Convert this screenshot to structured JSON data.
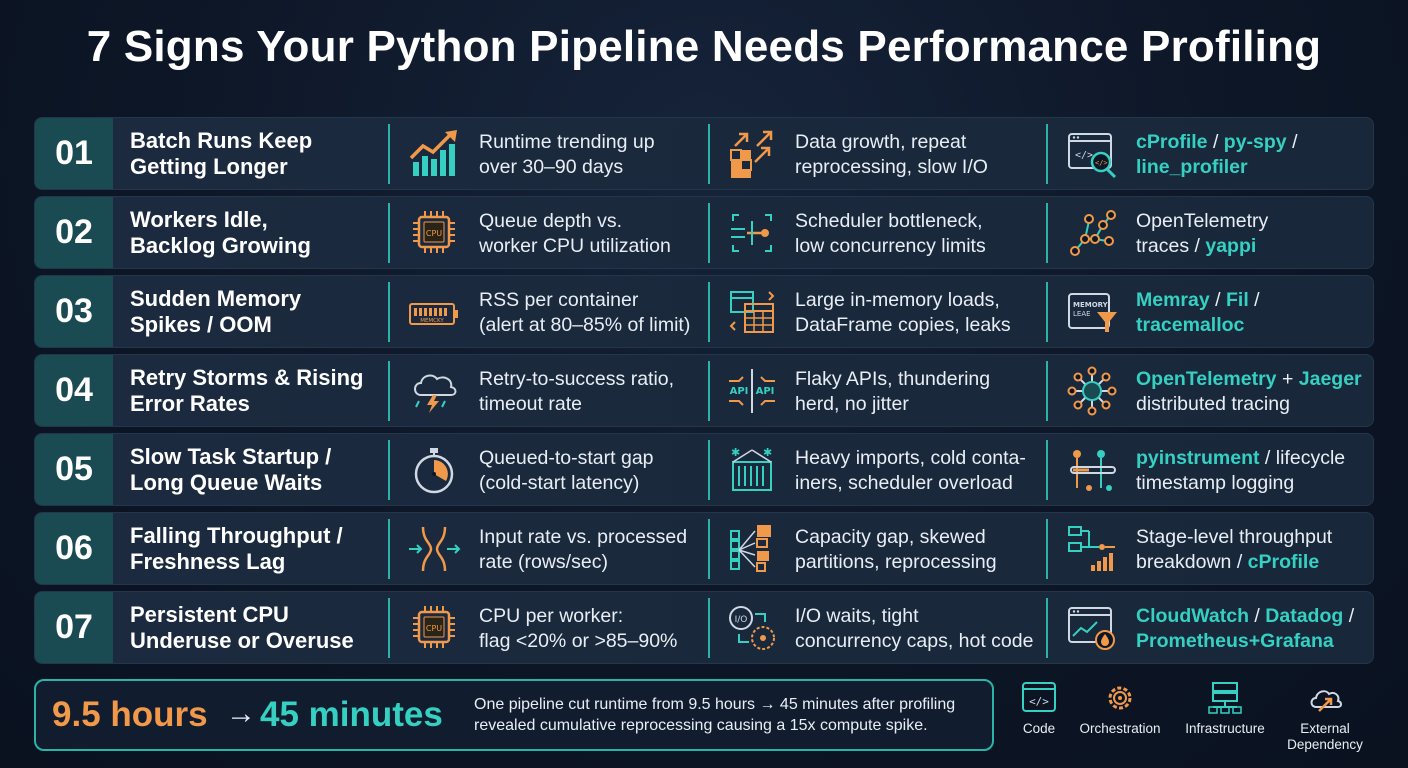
{
  "title": "7 Signs Your Python Pipeline Needs Performance Profiling",
  "colors": {
    "teal": "#35d0c2",
    "orange": "#f0994a",
    "background": "#0d1626",
    "row": "#1b2a3e",
    "number_box": "#1a4a52"
  },
  "rows": [
    {
      "num": "01",
      "sign_1": "Batch Runs Keep",
      "sign_2": "Getting Longer",
      "metric_icon": "trending-chart-icon",
      "metric_1": "Runtime trending up",
      "metric_2": "over 30–90 days",
      "cause_icon": "data-growth-icon",
      "cause_1": "Data growth, repeat",
      "cause_2": "reprocessing, slow I/O",
      "tool_icon": "code-search-icon",
      "tool_a": "cProfile",
      "tool_s1": " / ",
      "tool_b": "py-spy",
      "tool_s2": " /",
      "tool_c": "line_profiler"
    },
    {
      "num": "02",
      "sign_1": "Workers Idle,",
      "sign_2": "Backlog Growing",
      "metric_icon": "cpu-chip-icon",
      "metric_icon_label": "CPU",
      "metric_1": "Queue depth vs.",
      "metric_2": "worker CPU utilization",
      "cause_icon": "scheduler-bottleneck-icon",
      "cause_1": "Scheduler bottleneck,",
      "cause_2": "low concurrency limits",
      "tool_icon": "trace-graph-icon",
      "tool_1": "OpenTelemetry",
      "tool_2a": "traces / ",
      "tool_2b": "yappi"
    },
    {
      "num": "03",
      "sign_1": "Sudden Memory",
      "sign_2": "Spikes / OOM",
      "metric_icon": "memory-bar-icon",
      "metric_icon_label": "MEMCKY",
      "metric_1": "RSS per container",
      "metric_2": "(alert at 80–85% of limit)",
      "cause_icon": "dataframe-table-icon",
      "cause_1": "Large in-memory loads,",
      "cause_2": "DataFrame copies, leaks",
      "tool_icon": "memory-filter-icon",
      "tool_icon_label_1": "MEMORY",
      "tool_icon_label_2": "LEAE",
      "tool_a": "Memray",
      "tool_s1": " / ",
      "tool_b": "Fil",
      "tool_s2": " /",
      "tool_c": "tracemalloc"
    },
    {
      "num": "04",
      "sign_1": "Retry Storms & Rising",
      "sign_2": "Error Rates",
      "metric_icon": "storm-cloud-icon",
      "metric_1": "Retry-to-success ratio,",
      "metric_2": "timeout rate",
      "cause_icon": "api-conflict-icon",
      "cause_icon_label": "API",
      "cause_1": "Flaky APIs, thundering",
      "cause_2": "herd, no jitter",
      "tool_icon": "distributed-network-icon",
      "tool_a": "OpenTelemetry",
      "tool_s1": " + ",
      "tool_b": "Jaeger",
      "tool_2": "distributed tracing"
    },
    {
      "num": "05",
      "sign_1": "Slow Task Startup /",
      "sign_2": "Long Queue Waits",
      "metric_icon": "stopwatch-icon",
      "metric_1": "Queued-to-start gap",
      "metric_2": "(cold-start latency)",
      "cause_icon": "cold-container-icon",
      "cause_1": "Heavy imports, cold conta-",
      "cause_2": "iners, scheduler overload",
      "tool_icon": "lifecycle-timeline-icon",
      "tool_a": "pyinstrument",
      "tool_s1": " / lifecycle",
      "tool_2": "timestamp logging"
    },
    {
      "num": "06",
      "sign_1": "Falling Throughput /",
      "sign_2": "Freshness Lag",
      "metric_icon": "throughput-narrowing-icon",
      "metric_1": "Input rate vs. processed",
      "metric_2": "rate (rows/sec)",
      "cause_icon": "partition-skew-icon",
      "cause_1": "Capacity gap, skewed",
      "cause_2": "partitions, reprocessing",
      "tool_icon": "stage-breakdown-icon",
      "tool_1": "Stage-level throughput",
      "tool_2a": "breakdown / ",
      "tool_2b": "cProfile"
    },
    {
      "num": "07",
      "sign_1": "Persistent CPU",
      "sign_2": "Underuse or Overuse",
      "metric_icon": "cpu-chip-icon",
      "metric_icon_label": "CPU",
      "metric_1": "CPU per worker:",
      "metric_2": "flag <20% or >85–90%",
      "cause_icon": "io-wait-icon",
      "cause_icon_label": "I/O",
      "cause_1": "I/O waits, tight",
      "cause_2": "concurrency caps, hot code",
      "tool_icon": "monitoring-dashboard-icon",
      "tool_a": "CloudWatch",
      "tool_s1": " / ",
      "tool_b": "Datadog",
      "tool_s2": " /",
      "tool_c": "Prometheus+Grafana"
    }
  ],
  "summary": {
    "from": "9.5 hours",
    "arrow": "→",
    "to": "45 minutes",
    "line_1": "One pipeline cut runtime from 9.5 hours → 45 minutes after profiling",
    "line_2": "revealed cumulative reprocessing causing a 15x compute spike."
  },
  "legend": [
    {
      "icon": "code-icon",
      "label_1": "Code",
      "label_2": ""
    },
    {
      "icon": "orchestration-gear-icon",
      "label_1": "Orchestration",
      "label_2": ""
    },
    {
      "icon": "infrastructure-server-icon",
      "label_1": "Infrastructure",
      "label_2": ""
    },
    {
      "icon": "external-cloud-icon",
      "label_1": "External",
      "label_2": "Dependency"
    }
  ]
}
